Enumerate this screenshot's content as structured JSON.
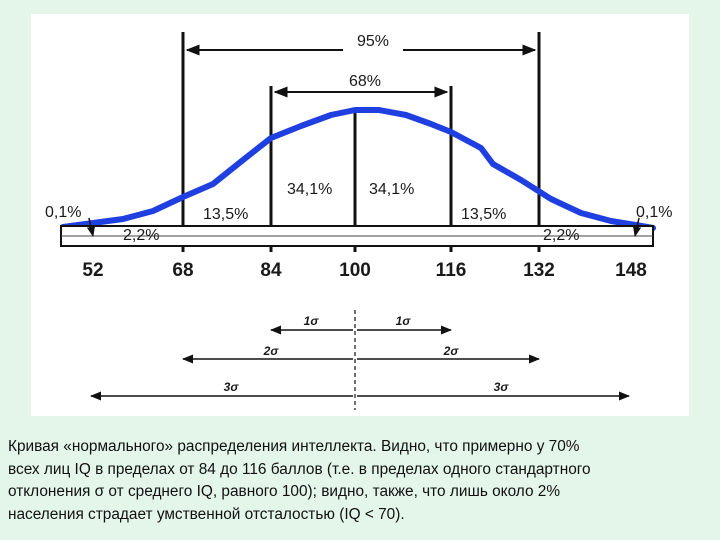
{
  "figure": {
    "brackets": {
      "outer_pct": "95%",
      "inner_pct": "68%"
    },
    "region_labels": {
      "tail_left": "0,1%",
      "tail_right": "0,1%",
      "band2_left": "2,2%",
      "band2_right": "2,2%",
      "band1_left": "13,5%",
      "band1_right": "13,5%",
      "center_left": "34,1%",
      "center_right": "34,1%"
    },
    "axis_ticks": [
      "52",
      "68",
      "84",
      "100",
      "116",
      "132",
      "148"
    ],
    "sigma_labels": {
      "one": "1σ",
      "two": "2σ",
      "three": "3σ"
    },
    "curve_color": "#1f3fe0"
  },
  "caption": {
    "text": "Кривая «нормального» распределения интеллекта. Видно, что примерно у 70%\nвсех лиц IQ в пределах от 84 до 116 баллов (т.е. в пределах одного стандартного\nотклонения σ от среднего IQ, равного 100); видно, также, что лишь около 2%\nнаселения страдает умственной отсталостью (IQ < 70)."
  }
}
